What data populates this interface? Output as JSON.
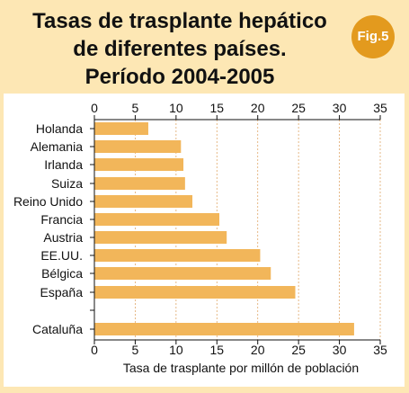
{
  "header": {
    "title_lines": [
      "Tasas de trasplante hepático",
      "de diferentes países.",
      "Período 2004-2005"
    ],
    "badge": "Fig.5"
  },
  "colors": {
    "background": "#fde7b4",
    "bar": "#f2b65a",
    "badge": "#e39a1e",
    "gridline": "#e0a86a"
  },
  "chart_data": {
    "type": "bar",
    "orientation": "horizontal",
    "categories": [
      "Holanda",
      "Alemania",
      "Irlanda",
      "Suiza",
      "Reino Unido",
      "Francia",
      "Austria",
      "EE.UU.",
      "Bélgica",
      "España",
      "Cataluña"
    ],
    "values": [
      6.6,
      10.6,
      10.9,
      11.1,
      12.0,
      15.3,
      16.2,
      20.3,
      21.6,
      24.6,
      31.8
    ],
    "xlabel": "Tasa de trasplante por millón de población",
    "ylabel": "",
    "xlim": [
      0,
      35
    ],
    "xticks": [
      0,
      5,
      10,
      15,
      20,
      25,
      30,
      35
    ],
    "grid": "vertical-dashed",
    "axis_ticks_top_and_bottom": true
  }
}
